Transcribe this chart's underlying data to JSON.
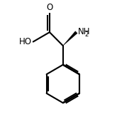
{
  "bg_color": "#ffffff",
  "line_color": "#000000",
  "bond_lw": 1.5,
  "figsize": [
    1.65,
    1.92
  ],
  "dpi": 100,
  "xlim": [
    -2.8,
    2.4
  ],
  "ylim": [
    -3.2,
    2.8
  ],
  "label_O": "O",
  "label_HO": "HO",
  "label_NH": "NH",
  "label_2": "2",
  "fs_main": 8.5,
  "fs_sub": 6.0
}
